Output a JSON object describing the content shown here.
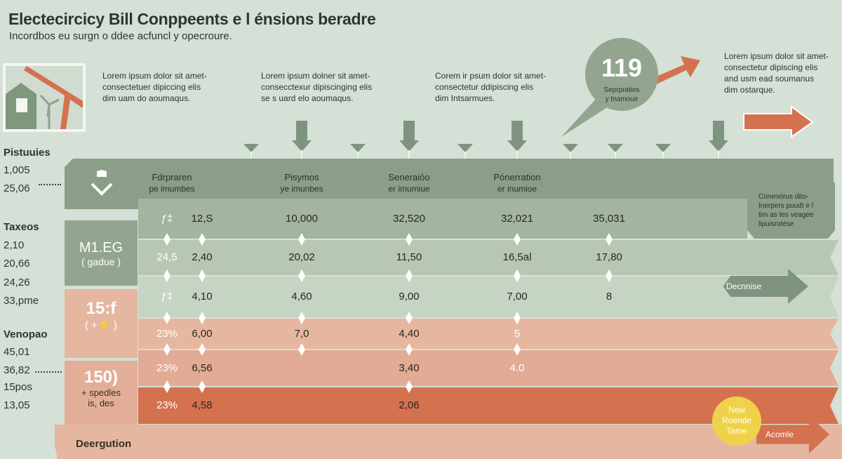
{
  "header": {
    "title": "Electecircicy Bill Conppeents  e l énsions beradre",
    "subtitle": "Incordbos eu  surgn o ddee acfuncl y opecroure."
  },
  "paragraphs": [
    [
      "Lorem ipsum dolor sit amet-",
      "consectetuer dipiccing elis",
      "dim uam do aoumaqus."
    ],
    [
      "Lorem ipsum dolner sit amet-",
      "consecctexur dipiscinging elis",
      "se s uard elo aoumaqus."
    ],
    [
      "Corem ir psum dolor sit amet-",
      "consectetur ddipiscing elis",
      "dim Intsarmues."
    ],
    [
      "Lorem ipsum dolor sit amet-",
      "consectetur dipiscing elis",
      "and usm ead soumanus",
      "dim ostarque."
    ]
  ],
  "bubble": {
    "value": "119",
    "line1": "Seprpraties",
    "line2": "y tnamoue"
  },
  "left_labels": [
    {
      "heading": "Pistuuies",
      "values": [
        "1,005",
        "25,06"
      ]
    },
    {
      "heading": "Taxeos",
      "values": [
        "2,10",
        "20,66",
        "24,26",
        "33,pme"
      ]
    },
    {
      "heading": "Venopao",
      "values": [
        "45,01",
        "36,82",
        "15pos",
        "13,05"
      ]
    }
  ],
  "columns": [
    {
      "title": "Fdrpraren",
      "sub": "pe imumbes"
    },
    {
      "title": "Pisymos",
      "sub": "ye imunbes"
    },
    {
      "title": "Seneraióo",
      "sub": "er imumiue"
    },
    {
      "title": "Pónerration",
      "sub": "er inumioe"
    }
  ],
  "categories": [
    {
      "big": "M1.EG",
      "small": "( gadue )"
    },
    {
      "big": "15:f",
      "small": "( +⚡ )"
    },
    {
      "big": "150)",
      "small": "+ spedles",
      "small2": "is, des"
    }
  ],
  "rows": [
    [
      "ƒ‡",
      "12,S",
      "10,000",
      "32,520",
      "32,021",
      "35,031"
    ],
    [
      "24,5",
      "2,40",
      "20,02",
      "11,50",
      "16,5al",
      "17,80"
    ],
    [
      "ƒ‡",
      "4,10",
      "4,60",
      "9,00",
      "7,00",
      "8"
    ],
    [
      "23%",
      "6,00",
      "7,0",
      "4,40",
      "5",
      ""
    ],
    [
      "23%",
      "6,56",
      "",
      "3,40",
      "4.0",
      ""
    ],
    [
      "23%",
      "4,58",
      "",
      "2,06",
      "",
      ""
    ]
  ],
  "row_colors": [
    "#a3b49f",
    "#b7c7b2",
    "#c6d4c3",
    "#e6b7a0",
    "#e2ab96",
    "#d4714f"
  ],
  "note": [
    "Conenórus dito-",
    "Inerpers puudt e l",
    "tim as tes veagee",
    "lipuisrotése"
  ],
  "decrease_label": "Decnnise",
  "badge": [
    "New",
    "Roende",
    "Tame"
  ],
  "action_label": "Acomle",
  "footer_label": "Deergution",
  "colors": {
    "background": "#d5e0d6",
    "green": "#8a9e88",
    "accent": "#d4714f",
    "yellow": "#f0d24a",
    "pink": "#e6b7a0"
  }
}
